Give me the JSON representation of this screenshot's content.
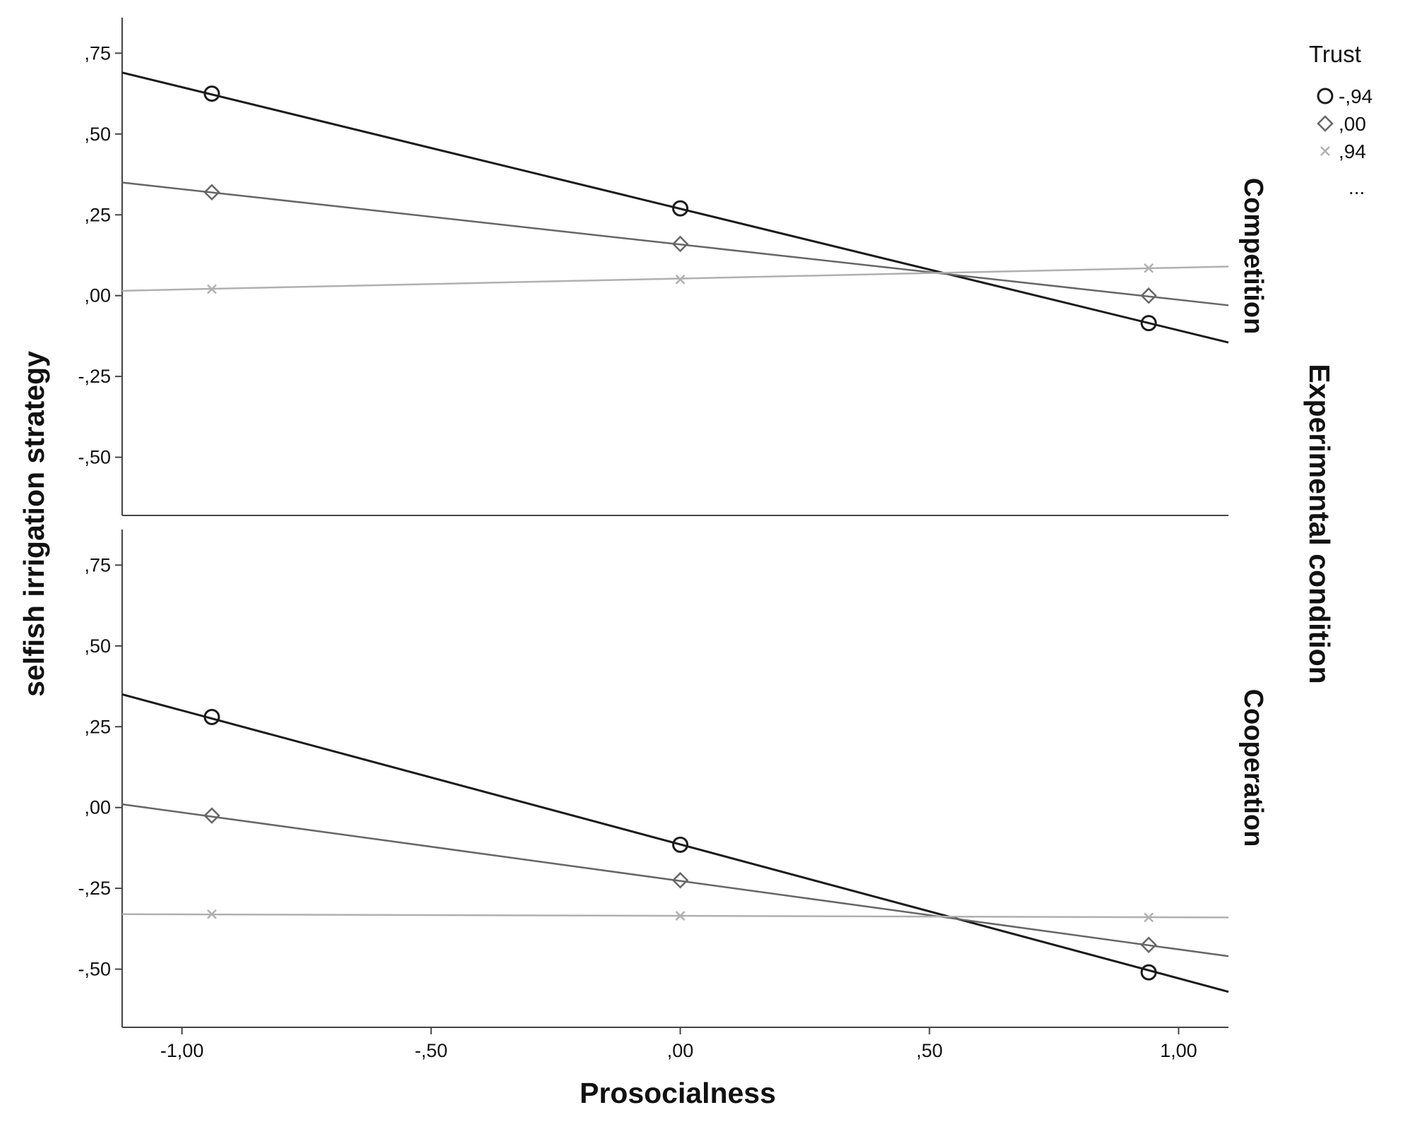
{
  "chart_data": {
    "type": "line",
    "xlabel": "Prosocialness",
    "ylabel": "selfish irrigation strategy",
    "facet_title": "Experimental condition",
    "x_ticks": [
      "-1,00",
      "-,50",
      ",00",
      ",50",
      "1,00"
    ],
    "x_tick_values": [
      -1.0,
      -0.5,
      0.0,
      0.5,
      1.0
    ],
    "y_ticks": [
      "-,50",
      "-,25",
      ",00",
      ",25",
      ",50",
      ",75"
    ],
    "y_tick_values": [
      -0.5,
      -0.25,
      0.0,
      0.25,
      0.5,
      0.75
    ],
    "xlim": [
      -1.12,
      1.1
    ],
    "ylim": [
      -0.68,
      0.86
    ],
    "grid": false,
    "legend": {
      "title": "Trust",
      "placement": "top-right",
      "entries": [
        {
          "label": "-,94",
          "marker": "circle",
          "color": "#1a1a1a"
        },
        {
          "label": ",00",
          "marker": "diamond",
          "color": "#666666"
        },
        {
          "label": ",94",
          "marker": "x",
          "color": "#b0b0b0"
        }
      ],
      "more": "..."
    },
    "panels": [
      {
        "label": "Competition",
        "series": [
          {
            "name": "-,94",
            "marker": "circle",
            "color": "#1a1a1a",
            "line_x": [
              -1.12,
              1.1
            ],
            "line_y": [
              0.69,
              -0.145
            ],
            "x": [
              -0.94,
              0.0,
              0.94
            ],
            "y": [
              0.625,
              0.27,
              -0.085
            ]
          },
          {
            "name": ",00",
            "marker": "diamond",
            "color": "#666666",
            "line_x": [
              -1.12,
              1.1
            ],
            "line_y": [
              0.35,
              -0.03
            ],
            "x": [
              -0.94,
              0.0,
              0.94
            ],
            "y": [
              0.32,
              0.16,
              0.0
            ]
          },
          {
            "name": ",94",
            "marker": "x",
            "color": "#b0b0b0",
            "line_x": [
              -1.12,
              1.1
            ],
            "line_y": [
              0.015,
              0.09
            ],
            "x": [
              -0.94,
              0.0,
              0.94
            ],
            "y": [
              0.02,
              0.05,
              0.085
            ]
          }
        ]
      },
      {
        "label": "Cooperation",
        "series": [
          {
            "name": "-,94",
            "marker": "circle",
            "color": "#1a1a1a",
            "line_x": [
              -1.12,
              1.1
            ],
            "line_y": [
              0.35,
              -0.57
            ],
            "x": [
              -0.94,
              0.0,
              0.94
            ],
            "y": [
              0.28,
              -0.115,
              -0.51
            ]
          },
          {
            "name": ",00",
            "marker": "diamond",
            "color": "#666666",
            "line_x": [
              -1.12,
              1.1
            ],
            "line_y": [
              0.01,
              -0.46
            ],
            "x": [
              -0.94,
              0.0,
              0.94
            ],
            "y": [
              -0.025,
              -0.225,
              -0.425
            ]
          },
          {
            "name": ",94",
            "marker": "x",
            "color": "#b0b0b0",
            "line_x": [
              -1.12,
              1.1
            ],
            "line_y": [
              -0.33,
              -0.34
            ],
            "x": [
              -0.94,
              0.0,
              0.94
            ],
            "y": [
              -0.33,
              -0.335,
              -0.34
            ]
          }
        ]
      }
    ]
  }
}
